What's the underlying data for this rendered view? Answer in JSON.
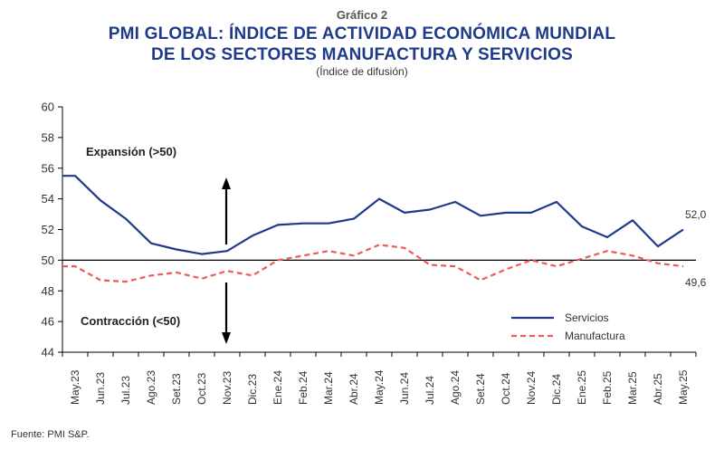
{
  "header": {
    "kicker": "Gráfico 2",
    "title_line1": "PMI GLOBAL: ÍNDICE DE ACTIVIDAD ECONÓMICA MUNDIAL",
    "title_line2": "DE LOS SECTORES MANUFACTURA Y SERVICIOS",
    "subtitle": "(Índice de difusión)"
  },
  "source": "Fuente: PMI S&P.",
  "annotations": {
    "expansion": "Expansión (>50)",
    "contraction": "Contracción (<50)",
    "last_servicios": "52,0",
    "last_manufactura": "49,6"
  },
  "colors": {
    "servicios": "#1f3a8a",
    "manufactura": "#f05a5a",
    "axis": "#000000"
  },
  "chart_data": {
    "type": "line",
    "categories": [
      "May.23",
      "Jun.23",
      "Jul.23",
      "Ago.23",
      "Set.23",
      "Oct.23",
      "Nov.23",
      "Dic.23",
      "Ene.24",
      "Feb.24",
      "Mar.24",
      "Abr.24",
      "May.24",
      "Jun.24",
      "Jul.24",
      "Ago.24",
      "Set.24",
      "Oct.24",
      "Nov.24",
      "Dic.24",
      "Ene.25",
      "Feb.25",
      "Mar.25",
      "Abr.25",
      "May.25"
    ],
    "series": [
      {
        "name": "Servicios",
        "style": "solid",
        "values": [
          55.5,
          53.9,
          52.7,
          51.1,
          50.7,
          50.4,
          50.6,
          51.6,
          52.3,
          52.4,
          52.4,
          52.7,
          54.0,
          53.1,
          53.3,
          53.8,
          52.9,
          53.1,
          53.1,
          53.8,
          52.2,
          51.5,
          52.6,
          50.9,
          52.0
        ]
      },
      {
        "name": "Manufactura",
        "style": "dashed",
        "values": [
          49.6,
          48.7,
          48.6,
          49.0,
          49.2,
          48.8,
          49.3,
          49.0,
          50.0,
          50.3,
          50.6,
          50.3,
          51.0,
          50.8,
          49.7,
          49.6,
          48.7,
          49.4,
          50.0,
          49.6,
          50.1,
          50.6,
          50.3,
          49.8,
          49.6
        ]
      }
    ],
    "y_ticks": [
      "44",
      "46",
      "48",
      "50",
      "52",
      "54",
      "56",
      "58",
      "60"
    ],
    "ylim": [
      44,
      60
    ],
    "reference_line": 50,
    "xlabel": "",
    "ylabel": "",
    "grid": false,
    "legend_position": "bottom-right"
  }
}
